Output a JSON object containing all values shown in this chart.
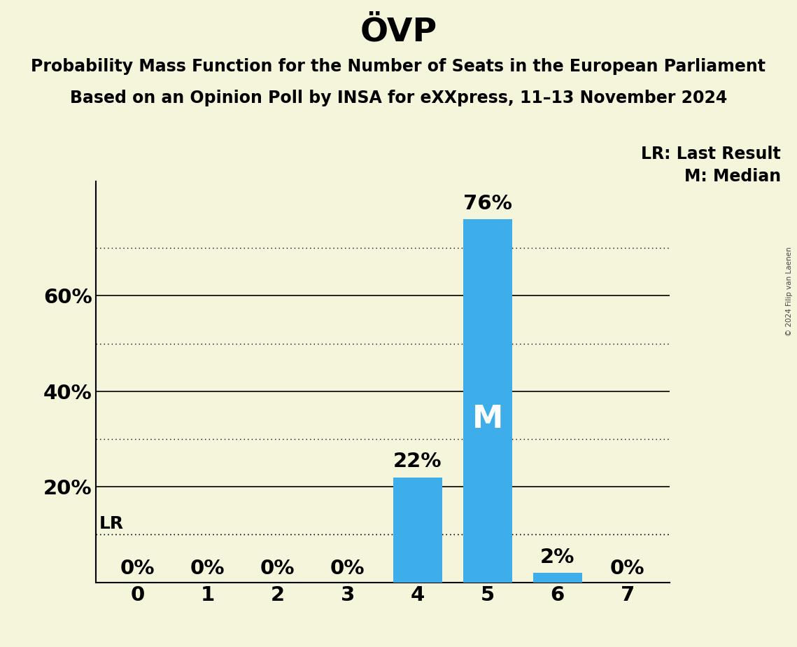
{
  "title": "ÖVP",
  "subtitle_line1": "Probability Mass Function for the Number of Seats in the European Parliament",
  "subtitle_line2": "Based on an Opinion Poll by INSA for eXXpress, 11–13 November 2024",
  "copyright": "© 2024 Filip van Laenen",
  "seats": [
    0,
    1,
    2,
    3,
    4,
    5,
    6,
    7
  ],
  "probabilities": [
    0.0,
    0.0,
    0.0,
    0.0,
    0.22,
    0.76,
    0.02,
    0.0
  ],
  "bar_color": "#3daee9",
  "median_seat": 5,
  "lr_value": 0.1,
  "background_color": "#f5f5dc",
  "ylim": [
    0,
    0.84
  ],
  "yticks": [
    0.0,
    0.1,
    0.2,
    0.3,
    0.4,
    0.5,
    0.6,
    0.7,
    0.8
  ],
  "ytick_labels": [
    "",
    "",
    "20%",
    "",
    "40%",
    "",
    "60%",
    "",
    ""
  ],
  "solid_yticks": [
    0.2,
    0.4,
    0.6
  ],
  "dotted_yticks": [
    0.1,
    0.3,
    0.5,
    0.7
  ],
  "lr_dotted_ytick": 0.1,
  "legend_lr_text": "LR: Last Result",
  "legend_m_text": "M: Median",
  "title_fontsize": 34,
  "subtitle_fontsize": 17,
  "tick_label_fontsize": 21,
  "bar_label_fontsize": 21,
  "legend_fontsize": 17,
  "lr_label_fontsize": 18,
  "m_label_fontsize": 32
}
